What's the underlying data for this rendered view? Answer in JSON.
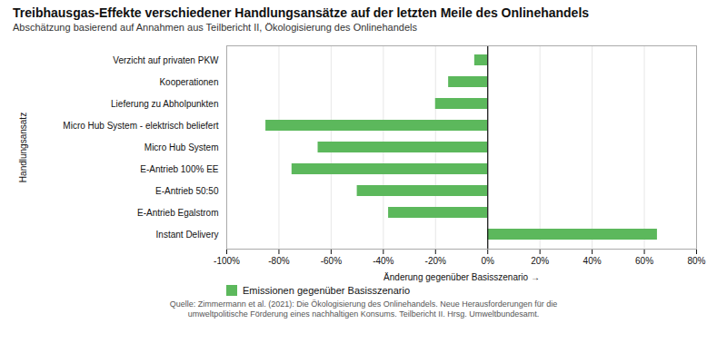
{
  "chart_data": {
    "type": "bar",
    "orientation": "horizontal",
    "title": "Treibhausgas-Effekte verschiedener Handlungsansätze auf der letzten Meile des Onlinehandels",
    "subtitle": "Abschätzung basierend auf Annahmen aus Teilbericht II, Ökologisierung des Onlinehandels",
    "categories": [
      "Instant Delivery",
      "E-Antrieb Egalstrom",
      "E-Antrieb 50:50",
      "E-Antrieb 100% EE",
      "Micro Hub System",
      "Micro Hub System - elektrisch beliefert",
      "Lieferung zu Abholpunkten",
      "Kooperationen",
      "Verzicht auf privaten PKW"
    ],
    "series": [
      {
        "name": "Emissionen gegenüber Basisszenario",
        "color": "#5cb85c",
        "values": [
          65,
          -38,
          -50,
          -75,
          -65,
          -85,
          -20,
          -15,
          -5
        ]
      }
    ],
    "xlabel": "Änderung gegenüber Basisszenario",
    "ylabel": "Handlungsansatz",
    "xlim": [
      -100,
      80
    ],
    "xticks": [
      {
        "value": -100,
        "label": "-100%"
      },
      {
        "value": -80,
        "label": "-80%"
      },
      {
        "value": -60,
        "label": "-60%"
      },
      {
        "value": -40,
        "label": "-40%"
      },
      {
        "value": -20,
        "label": "-20%"
      },
      {
        "value": 0,
        "label": "0%"
      },
      {
        "value": 20,
        "label": "20%"
      },
      {
        "value": 40,
        "label": "40%"
      },
      {
        "value": 60,
        "label": "60%"
      },
      {
        "value": 80,
        "label": "80%"
      }
    ],
    "grid": true,
    "legend": "lower left",
    "footnote": "Quelle: Zimmermann et al. (2021): Die Ökologisierung des Onlinehandels. Neue Herausforderungen für die\numweltpolitische Förderung eines nachhaltigen Konsums. Teilbericht II. Hrsg. Umweltbundesamt."
  }
}
